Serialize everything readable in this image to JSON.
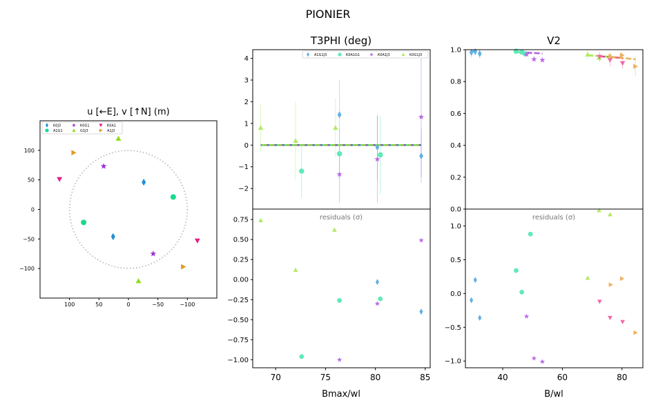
{
  "figure": {
    "title": "PIONIER"
  },
  "chart_data": [
    {
      "id": "uv",
      "type": "scatter",
      "title": "u [←E], v [↑N] (m)",
      "xlim": [
        150,
        -150
      ],
      "ylim": [
        -150,
        150
      ],
      "xticks": [
        100,
        50,
        0,
        -50,
        -100
      ],
      "yticks": [
        100,
        50,
        0,
        -50,
        -100
      ],
      "xtick_labels": [
        "100",
        "50",
        "0",
        "−50",
        "−100"
      ],
      "ytick_labels": [
        "100",
        "50",
        "0",
        "−50",
        "−100"
      ],
      "circle_radius": 100,
      "legend": [
        {
          "label": "K0J3",
          "color": "#1f8fd6",
          "marker": "diamond"
        },
        {
          "label": "A1G1",
          "color": "#19d98c",
          "marker": "circle"
        },
        {
          "label": "K0G1",
          "color": "#9b2fd6",
          "marker": "star"
        },
        {
          "label": "G1J3",
          "color": "#8fdc1a",
          "marker": "triangle-up"
        },
        {
          "label": "K0A1",
          "color": "#e0208c",
          "marker": "triangle-down"
        },
        {
          "label": "A1J3",
          "color": "#e09a25",
          "marker": "triangle-right"
        }
      ],
      "series": [
        {
          "name": "K0J3",
          "color": "#1f8fd6",
          "marker": "diamond",
          "points": [
            [
              -26,
              46
            ],
            [
              26,
              -46
            ]
          ]
        },
        {
          "name": "A1G1",
          "color": "#19d98c",
          "marker": "circle",
          "points": [
            [
              -76,
              21
            ],
            [
              76,
              -22
            ]
          ]
        },
        {
          "name": "K0G1",
          "color": "#9b2fd6",
          "marker": "star",
          "points": [
            [
              42,
              73
            ],
            [
              -42,
              -75
            ]
          ]
        },
        {
          "name": "G1J3",
          "color": "#8fdc1a",
          "marker": "triangle-up",
          "points": [
            [
              17,
              120
            ],
            [
              -17,
              -121
            ]
          ]
        },
        {
          "name": "K0A1",
          "color": "#e0208c",
          "marker": "triangle-down",
          "points": [
            [
              117,
              51
            ],
            [
              -117,
              -53
            ]
          ]
        },
        {
          "name": "A1J3",
          "color": "#e09a25",
          "marker": "triangle-right",
          "points": [
            [
              93,
              96
            ],
            [
              -93,
              -97
            ]
          ]
        }
      ]
    },
    {
      "id": "t3phi",
      "type": "scatter",
      "title": "T3PHI (deg)",
      "xlabel": "Bmax/wl",
      "xlim": [
        67.7,
        85.5
      ],
      "ylim": [
        -2.95,
        4.4
      ],
      "yticks": [
        -2,
        -1,
        0,
        1,
        2,
        3,
        4
      ],
      "ytick_labels": [
        "−2",
        "−1",
        "0",
        "1",
        "2",
        "3",
        "4"
      ],
      "xticks": [
        70,
        75,
        80,
        85
      ],
      "xtick_labels": [
        "70",
        "75",
        "80",
        "85"
      ],
      "legend": [
        {
          "label": "A1G1J3",
          "color": "#5fb0e6",
          "marker": "diamond"
        },
        {
          "label": "K0A1G1",
          "color": "#5feab8",
          "marker": "circle"
        },
        {
          "label": "K0A1J3",
          "color": "#b86ae6",
          "marker": "star"
        },
        {
          "label": "K0G1J3",
          "color": "#b2ea66",
          "marker": "triangle-up"
        }
      ],
      "series": [
        {
          "name": "A1G1J3",
          "color": "#5fb0e6",
          "marker": "diamond",
          "model_color": "#1f8fd6",
          "points": [
            {
              "x": 76.4,
              "y": 1.4,
              "err": 1.6
            },
            {
              "x": 80.2,
              "y": -0.1,
              "err": 1.5
            },
            {
              "x": 84.6,
              "y": -0.5,
              "err": 1.25
            }
          ]
        },
        {
          "name": "K0A1G1",
          "color": "#5feab8",
          "marker": "circle",
          "model_color": "#19d98c",
          "points": [
            {
              "x": 72.6,
              "y": -1.2,
              "err": 1.25
            },
            {
              "x": 76.4,
              "y": -0.4,
              "err": 1.2
            },
            {
              "x": 80.5,
              "y": -0.45,
              "err": 1.8
            }
          ]
        },
        {
          "name": "K0A1J3",
          "color": "#b86ae6",
          "marker": "star",
          "model_color": "#7b2fbf",
          "points": [
            {
              "x": 76.4,
              "y": -1.35,
              "err": 1.3
            },
            {
              "x": 80.2,
              "y": -0.65,
              "err": 2.0
            },
            {
              "x": 84.6,
              "y": 1.3,
              "err": 2.8
            }
          ]
        },
        {
          "name": "K0G1J3",
          "color": "#b2ea66",
          "marker": "triangle-up",
          "model_color": "#8fdc1a",
          "points": [
            {
              "x": 68.5,
              "y": 0.8,
              "err": 1.1
            },
            {
              "x": 72.0,
              "y": 0.2,
              "err": 1.8
            },
            {
              "x": 76.0,
              "y": 0.8,
              "err": 1.35
            }
          ]
        }
      ],
      "model_y": 0
    },
    {
      "id": "t3phi_res",
      "type": "scatter",
      "label": "residuals (σ)",
      "xlim": [
        67.7,
        85.5
      ],
      "ylim": [
        -1.1,
        0.88
      ],
      "yticks": [
        0.75,
        0.5,
        0.25,
        0.0,
        -0.25,
        -0.5,
        -0.75,
        -1.0
      ],
      "ytick_labels": [
        "0.75",
        "0.50",
        "0.25",
        "0.00",
        "−0.25",
        "−0.50",
        "−0.75",
        "−1.00"
      ],
      "series": [
        {
          "name": "A1G1J3",
          "color": "#5fb0e6",
          "marker": "diamond",
          "points": [
            [
              80.2,
              -0.03
            ],
            [
              84.6,
              -0.4
            ]
          ]
        },
        {
          "name": "K0A1G1",
          "color": "#5feab8",
          "marker": "circle",
          "points": [
            [
              72.6,
              -0.96
            ],
            [
              76.4,
              -0.26
            ],
            [
              80.5,
              -0.24
            ]
          ]
        },
        {
          "name": "K0A1J3",
          "color": "#b86ae6",
          "marker": "star",
          "points": [
            [
              80.2,
              -0.3
            ],
            [
              84.6,
              0.49
            ],
            [
              76.4,
              -1.0
            ]
          ]
        },
        {
          "name": "K0G1J3",
          "color": "#b2ea66",
          "marker": "triangle-up",
          "points": [
            [
              68.5,
              0.74
            ],
            [
              72.0,
              0.12
            ],
            [
              75.9,
              0.62
            ]
          ]
        }
      ]
    },
    {
      "id": "v2",
      "type": "scatter",
      "title": "V2",
      "xlabel": "B/wl",
      "xlim": [
        27.5,
        87
      ],
      "ylim": [
        0,
        1.0
      ],
      "yticks": [
        0.0,
        0.2,
        0.4,
        0.6,
        0.8,
        1.0
      ],
      "ytick_labels": [
        "0.0",
        "0.2",
        "0.4",
        "0.6",
        "0.8",
        "1.0"
      ],
      "xticks": [
        40,
        60,
        80
      ],
      "xtick_labels": [
        "40",
        "60",
        "80"
      ],
      "series": [
        {
          "name": "K0J3",
          "color": "#5fb0e6",
          "marker": "diamond",
          "points": [
            {
              "x": 29.5,
              "y": 0.983,
              "err": 0.03
            },
            {
              "x": 30.8,
              "y": 0.988,
              "err": 0.02
            },
            {
              "x": 32.3,
              "y": 0.975,
              "err": 0.03
            }
          ]
        },
        {
          "name": "A1G1",
          "color": "#5feab8",
          "marker": "circle",
          "points": [
            {
              "x": 44.5,
              "y": 0.99,
              "err": 0.01
            },
            {
              "x": 46.4,
              "y": 0.985,
              "err": 0.01
            },
            {
              "x": 47.5,
              "y": 0.975,
              "err": 0.01
            }
          ]
        },
        {
          "name": "K0G1",
          "color": "#b86ae6",
          "marker": "star",
          "points": [
            {
              "x": 48.0,
              "y": 0.97,
              "err": 0.01
            },
            {
              "x": 50.5,
              "y": 0.94,
              "err": 0.015
            },
            {
              "x": 53.3,
              "y": 0.935,
              "err": 0.015
            }
          ]
        },
        {
          "name": "G1J3",
          "color": "#b2ea66",
          "marker": "triangle-up",
          "points": [
            {
              "x": 68.5,
              "y": 0.97,
              "err": 0.03
            },
            {
              "x": 72.3,
              "y": 0.95,
              "err": 0.02
            },
            {
              "x": 76.0,
              "y": 0.96,
              "err": 0.02
            }
          ]
        },
        {
          "name": "K0A1",
          "color": "#f06aa8",
          "marker": "triangle-down",
          "points": [
            {
              "x": 72.5,
              "y": 0.955,
              "err": 0.03
            },
            {
              "x": 76.0,
              "y": 0.935,
              "err": 0.04
            },
            {
              "x": 80.2,
              "y": 0.915,
              "err": 0.035
            }
          ]
        },
        {
          "name": "A1J3",
          "color": "#f0b060",
          "marker": "triangle-right",
          "points": [
            {
              "x": 76.2,
              "y": 0.958,
              "err": 0.02
            },
            {
              "x": 80.0,
              "y": 0.965,
              "err": 0.025
            },
            {
              "x": 84.5,
              "y": 0.895,
              "err": 0.06
            }
          ]
        }
      ],
      "models": [
        {
          "color": "#1f8fd6",
          "x": [
            29.5,
            32.3
          ],
          "y": [
            0.99,
            0.988
          ]
        },
        {
          "color": "#19d98c",
          "x": [
            44.5,
            47.5
          ],
          "y": [
            0.985,
            0.982
          ]
        },
        {
          "color": "#9b2fd6",
          "x": [
            48.0,
            53.3
          ],
          "y": [
            0.982,
            0.976
          ]
        },
        {
          "color": "#8fdc1a",
          "x": [
            68.5,
            76.0
          ],
          "y": [
            0.965,
            0.955
          ]
        },
        {
          "color": "#e0208c",
          "x": [
            72.5,
            80.2
          ],
          "y": [
            0.958,
            0.948
          ]
        },
        {
          "color": "#e09a25",
          "x": [
            76.2,
            84.5
          ],
          "y": [
            0.955,
            0.94
          ]
        }
      ]
    },
    {
      "id": "v2_res",
      "type": "scatter",
      "label": "residuals (σ)",
      "xlim": [
        27.5,
        87
      ],
      "ylim": [
        -1.1,
        1.25
      ],
      "yticks": [
        1.0,
        0.5,
        0.0,
        -0.5,
        -1.0
      ],
      "ytick_labels": [
        "1.0",
        "0.5",
        "0.0",
        "−0.5",
        "−1.0"
      ],
      "series": [
        {
          "name": "K0J3",
          "color": "#5fb0e6",
          "marker": "diamond",
          "points": [
            [
              29.5,
              -0.1
            ],
            [
              30.8,
              0.2
            ],
            [
              32.3,
              -0.36
            ]
          ]
        },
        {
          "name": "A1G1",
          "color": "#5feab8",
          "marker": "circle",
          "points": [
            [
              44.5,
              0.34
            ],
            [
              46.4,
              0.02
            ],
            [
              49.3,
              0.88
            ]
          ]
        },
        {
          "name": "K0G1",
          "color": "#b86ae6",
          "marker": "star",
          "points": [
            [
              48.0,
              -0.34
            ],
            [
              50.5,
              -0.96
            ],
            [
              53.3,
              -1.01
            ]
          ]
        },
        {
          "name": "G1J3",
          "color": "#b2ea66",
          "marker": "triangle-up",
          "points": [
            [
              68.5,
              0.23
            ],
            [
              72.3,
              1.23
            ],
            [
              76.0,
              1.17
            ]
          ]
        },
        {
          "name": "K0A1",
          "color": "#f06aa8",
          "marker": "triangle-down",
          "points": [
            [
              72.5,
              -0.12
            ],
            [
              76.0,
              -0.36
            ],
            [
              80.2,
              -0.42
            ]
          ]
        },
        {
          "name": "A1J3",
          "color": "#f0b060",
          "marker": "triangle-right",
          "points": [
            [
              76.2,
              0.13
            ],
            [
              80.0,
              0.22
            ],
            [
              84.5,
              -0.58
            ]
          ]
        }
      ]
    }
  ]
}
